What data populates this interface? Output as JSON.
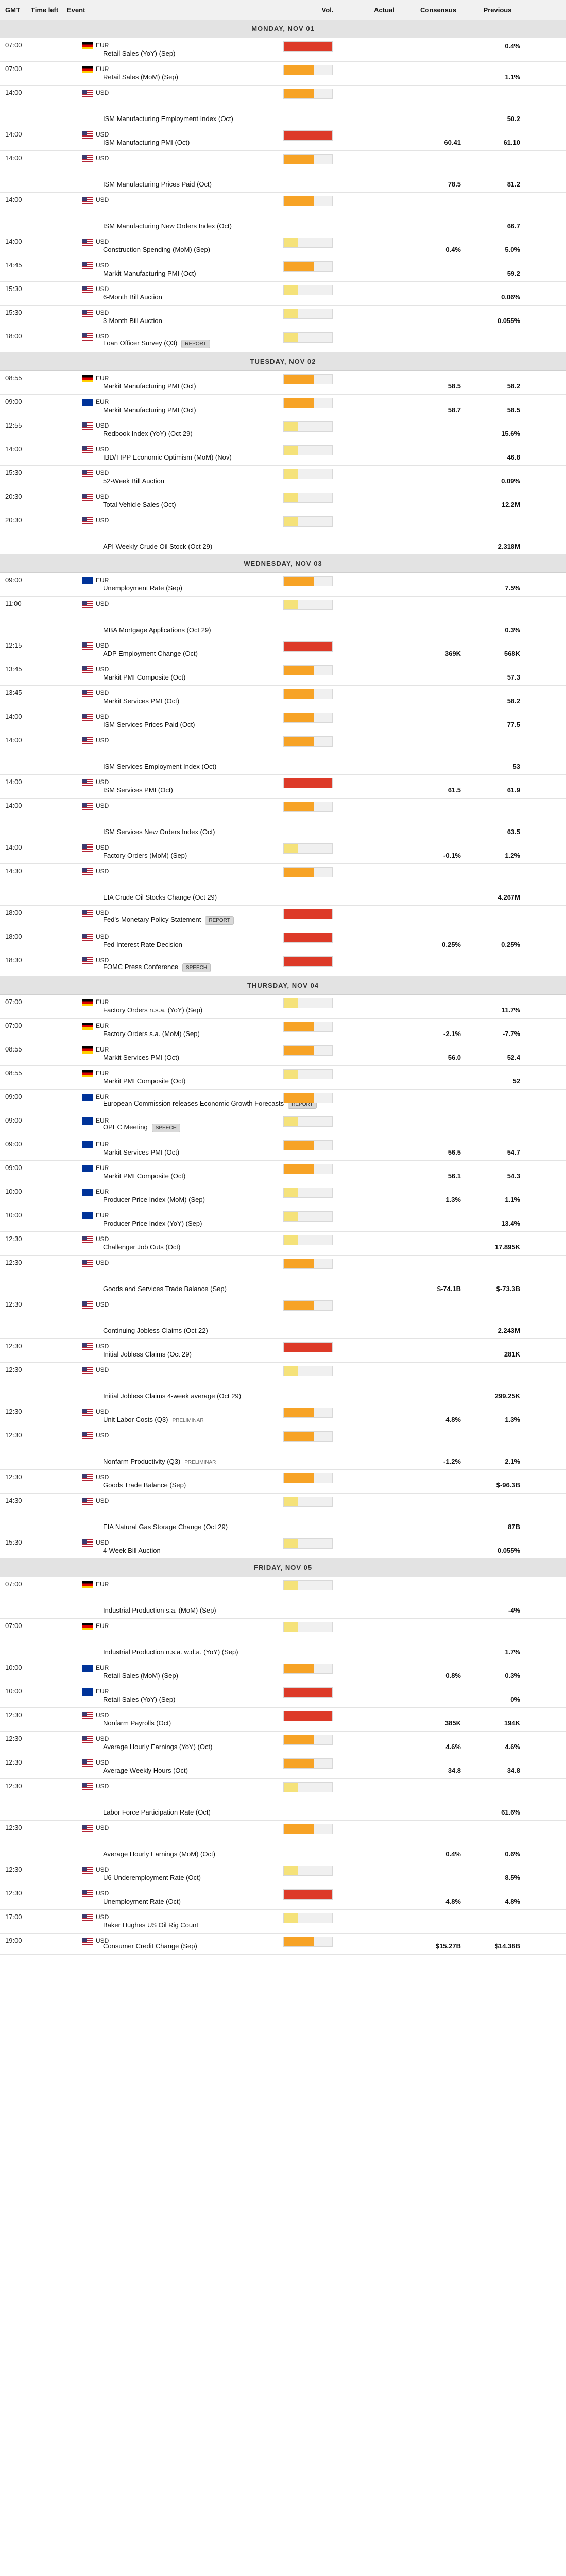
{
  "header": {
    "gmt": "GMT",
    "time_left": "Time left",
    "event": "Event",
    "vol": "Vol.",
    "actual": "Actual",
    "consensus": "Consensus",
    "previous": "Previous"
  },
  "colors": {
    "high": "#dd3a28",
    "medium": "#f7a326",
    "low": "#f5e27a"
  },
  "days": [
    {
      "label": "MONDAY, NOV 01",
      "rows": [
        {
          "t": "07:00",
          "cur": "EUR",
          "flag": "de",
          "ev": "Retail Sales (YoY) (Sep)",
          "vol": 3,
          "h": 45,
          "vtop": 8,
          "prev": "0.4%"
        },
        {
          "t": "07:00",
          "cur": "EUR",
          "flag": "de",
          "ev": "Retail Sales (MoM) (Sep)",
          "vol": 2,
          "h": 45,
          "prev": "1.1%"
        },
        {
          "t": "14:00",
          "cur": "USD",
          "flag": "us",
          "ev": "ISM Manufacturing Employment Index (Oct)",
          "vol": 2,
          "h": 80,
          "prev": "50.2"
        },
        {
          "t": "14:00",
          "cur": "USD",
          "flag": "us",
          "ev": "ISM Manufacturing PMI (Oct)",
          "vol": 3,
          "h": 45,
          "con": "60.41",
          "prev": "61.10"
        },
        {
          "t": "14:00",
          "cur": "USD",
          "flag": "us",
          "ev": "ISM Manufacturing Prices Paid (Oct)",
          "vol": 2,
          "h": 80,
          "con": "78.5",
          "prev": "81.2"
        },
        {
          "t": "14:00",
          "cur": "USD",
          "flag": "us",
          "ev": "ISM Manufacturing New Orders Index (Oct)",
          "vol": 2,
          "h": 80,
          "prev": "66.7"
        },
        {
          "t": "14:00",
          "cur": "USD",
          "flag": "us",
          "ev": "Construction Spending (MoM) (Sep)",
          "vol": 1,
          "h": 45,
          "con": "0.4%",
          "prev": "5.0%"
        },
        {
          "t": "14:45",
          "cur": "USD",
          "flag": "us",
          "ev": "Markit Manufacturing PMI (Oct)",
          "vol": 2,
          "h": 45,
          "prev": "59.2"
        },
        {
          "t": "15:30",
          "cur": "USD",
          "flag": "us",
          "ev": "6-Month Bill Auction",
          "vol": 1,
          "h": 45,
          "prev": "0.06%"
        },
        {
          "t": "15:30",
          "cur": "USD",
          "flag": "us",
          "ev": "3-Month Bill Auction",
          "vol": 1,
          "h": 45,
          "prev": "0.055%"
        },
        {
          "t": "18:00",
          "cur": "USD",
          "flag": "us",
          "ev": "Loan Officer Survey (Q3)",
          "badge": "REPORT",
          "vol": 1,
          "h": 45
        }
      ]
    },
    {
      "label": "TUESDAY, NOV 02",
      "rows": [
        {
          "t": "08:55",
          "cur": "EUR",
          "flag": "de",
          "ev": "Markit Manufacturing PMI (Oct)",
          "vol": 2,
          "h": 45,
          "con": "58.5",
          "prev": "58.2"
        },
        {
          "t": "09:00",
          "cur": "EUR",
          "flag": "eu",
          "ev": "Markit Manufacturing PMI (Oct)",
          "vol": 2,
          "h": 45,
          "con": "58.7",
          "prev": "58.5"
        },
        {
          "t": "12:55",
          "cur": "USD",
          "flag": "us",
          "ev": "Redbook Index (YoY) (Oct 29)",
          "vol": 1,
          "h": 45,
          "prev": "15.6%"
        },
        {
          "t": "14:00",
          "cur": "USD",
          "flag": "us",
          "ev": "IBD/TIPP Economic Optimism (MoM) (Nov)",
          "vol": 1,
          "h": 45,
          "prev": "46.8"
        },
        {
          "t": "15:30",
          "cur": "USD",
          "flag": "us",
          "ev": "52-Week Bill Auction",
          "vol": 1,
          "h": 45,
          "prev": "0.09%"
        },
        {
          "t": "20:30",
          "cur": "USD",
          "flag": "us",
          "ev": "Total Vehicle Sales (Oct)",
          "vol": 1,
          "h": 45,
          "prev": "12.2M"
        },
        {
          "t": "20:30",
          "cur": "USD",
          "flag": "us",
          "ev": "API Weekly Crude Oil Stock (Oct 29)",
          "vol": 1,
          "h": 80,
          "prev": "2.318M"
        }
      ]
    },
    {
      "label": "WEDNESDAY, NOV 03",
      "rows": [
        {
          "t": "09:00",
          "cur": "EUR",
          "flag": "eu",
          "ev": "Unemployment Rate (Sep)",
          "vol": 2,
          "h": 45,
          "prev": "7.5%"
        },
        {
          "t": "11:00",
          "cur": "USD",
          "flag": "us",
          "ev": "MBA Mortgage Applications (Oct 29)",
          "vol": 1,
          "h": 80,
          "prev": "0.3%"
        },
        {
          "t": "12:15",
          "cur": "USD",
          "flag": "us",
          "ev": "ADP Employment Change (Oct)",
          "vol": 3,
          "h": 45,
          "con": "369K",
          "prev": "568K"
        },
        {
          "t": "13:45",
          "cur": "USD",
          "flag": "us",
          "ev": "Markit PMI Composite (Oct)",
          "vol": 2,
          "h": 45,
          "prev": "57.3"
        },
        {
          "t": "13:45",
          "cur": "USD",
          "flag": "us",
          "ev": "Markit Services PMI (Oct)",
          "vol": 2,
          "h": 45,
          "prev": "58.2"
        },
        {
          "t": "14:00",
          "cur": "USD",
          "flag": "us",
          "ev": "ISM Services Prices Paid (Oct)",
          "vol": 2,
          "h": 45,
          "prev": "77.5"
        },
        {
          "t": "14:00",
          "cur": "USD",
          "flag": "us",
          "ev": "ISM Services Employment Index (Oct)",
          "vol": 2,
          "h": 80,
          "prev": "53"
        },
        {
          "t": "14:00",
          "cur": "USD",
          "flag": "us",
          "ev": "ISM Services PMI (Oct)",
          "vol": 3,
          "h": 45,
          "con": "61.5",
          "prev": "61.9"
        },
        {
          "t": "14:00",
          "cur": "USD",
          "flag": "us",
          "ev": "ISM Services New Orders Index (Oct)",
          "vol": 2,
          "h": 80,
          "prev": "63.5"
        },
        {
          "t": "14:00",
          "cur": "USD",
          "flag": "us",
          "ev": "Factory Orders (MoM) (Sep)",
          "vol": 1,
          "h": 45,
          "con": "-0.1%",
          "prev": "1.2%"
        },
        {
          "t": "14:30",
          "cur": "USD",
          "flag": "us",
          "ev": "EIA Crude Oil Stocks Change (Oct 29)",
          "vol": 2,
          "h": 80,
          "prev": "4.267M"
        },
        {
          "t": "18:00",
          "cur": "USD",
          "flag": "us",
          "ev": "Fed's Monetary Policy Statement",
          "badge": "REPORT",
          "vol": 3,
          "h": 45
        },
        {
          "t": "18:00",
          "cur": "USD",
          "flag": "us",
          "ev": "Fed Interest Rate Decision",
          "vol": 3,
          "h": 45,
          "con": "0.25%",
          "prev": "0.25%"
        },
        {
          "t": "18:30",
          "cur": "USD",
          "flag": "us",
          "ev": "FOMC Press Conference",
          "badge": "SPEECH",
          "vol": 3,
          "h": 45
        }
      ]
    },
    {
      "label": "THURSDAY, NOV 04",
      "rows": [
        {
          "t": "07:00",
          "cur": "EUR",
          "flag": "de",
          "ev": "Factory Orders n.s.a. (YoY) (Sep)",
          "vol": 1,
          "h": 45,
          "prev": "11.7%"
        },
        {
          "t": "07:00",
          "cur": "EUR",
          "flag": "de",
          "ev": "Factory Orders s.a. (MoM) (Sep)",
          "vol": 2,
          "h": 45,
          "con": "-2.1%",
          "prev": "-7.7%"
        },
        {
          "t": "08:55",
          "cur": "EUR",
          "flag": "de",
          "ev": "Markit Services PMI (Oct)",
          "vol": 2,
          "h": 45,
          "con": "56.0",
          "prev": "52.4"
        },
        {
          "t": "08:55",
          "cur": "EUR",
          "flag": "de",
          "ev": "Markit PMI Composite (Oct)",
          "vol": 1,
          "h": 45,
          "prev": "52"
        },
        {
          "t": "09:00",
          "cur": "EUR",
          "flag": "eu",
          "ev": "European Commission releases Economic Growth Forecasts",
          "badge": "REPORT",
          "vol": 2,
          "h": 45
        },
        {
          "t": "09:00",
          "cur": "EUR",
          "flag": "eu",
          "ev": "OPEC Meeting",
          "badge": "SPEECH",
          "vol": 1,
          "h": 45
        },
        {
          "t": "09:00",
          "cur": "EUR",
          "flag": "eu",
          "ev": "Markit Services PMI (Oct)",
          "vol": 2,
          "h": 45,
          "con": "56.5",
          "prev": "54.7"
        },
        {
          "t": "09:00",
          "cur": "EUR",
          "flag": "eu",
          "ev": "Markit PMI Composite (Oct)",
          "vol": 2,
          "h": 45,
          "con": "56.1",
          "prev": "54.3"
        },
        {
          "t": "10:00",
          "cur": "EUR",
          "flag": "eu",
          "ev": "Producer Price Index (MoM) (Sep)",
          "vol": 1,
          "h": 45,
          "con": "1.3%",
          "prev": "1.1%"
        },
        {
          "t": "10:00",
          "cur": "EUR",
          "flag": "eu",
          "ev": "Producer Price Index (YoY) (Sep)",
          "vol": 1,
          "h": 45,
          "prev": "13.4%"
        },
        {
          "t": "12:30",
          "cur": "USD",
          "flag": "us",
          "ev": "Challenger Job Cuts (Oct)",
          "vol": 1,
          "h": 45,
          "prev": "17.895K"
        },
        {
          "t": "12:30",
          "cur": "USD",
          "flag": "us",
          "ev": "Goods and Services Trade Balance (Sep)",
          "vol": 2,
          "h": 80,
          "con": "$-74.1B",
          "prev": "$-73.3B"
        },
        {
          "t": "12:30",
          "cur": "USD",
          "flag": "us",
          "ev": "Continuing Jobless Claims (Oct 22)",
          "vol": 2,
          "h": 80,
          "prev": "2.243M"
        },
        {
          "t": "12:30",
          "cur": "USD",
          "flag": "us",
          "ev": "Initial Jobless Claims (Oct 29)",
          "vol": 3,
          "h": 45,
          "prev": "281K"
        },
        {
          "t": "12:30",
          "cur": "USD",
          "flag": "us",
          "ev": "Initial Jobless Claims 4-week average (Oct 29)",
          "vol": 1,
          "h": 80,
          "prev": "299.25K"
        },
        {
          "t": "12:30",
          "cur": "USD",
          "flag": "us",
          "ev": "Unit Labor Costs (Q3)",
          "prelim": "PRELIMINAR",
          "vol": 2,
          "h": 45,
          "con": "4.8%",
          "prev": "1.3%"
        },
        {
          "t": "12:30",
          "cur": "USD",
          "flag": "us",
          "ev": "Nonfarm Productivity (Q3)",
          "prelim": "PRELIMINAR",
          "vol": 2,
          "h": 80,
          "con": "-1.2%",
          "prev": "2.1%"
        },
        {
          "t": "12:30",
          "cur": "USD",
          "flag": "us",
          "ev": "Goods Trade Balance (Sep)",
          "vol": 2,
          "h": 45,
          "prev": "$-96.3B"
        },
        {
          "t": "14:30",
          "cur": "USD",
          "flag": "us",
          "ev": "EIA Natural Gas Storage Change (Oct 29)",
          "vol": 1,
          "h": 80,
          "prev": "87B"
        },
        {
          "t": "15:30",
          "cur": "USD",
          "flag": "us",
          "ev": "4-Week Bill Auction",
          "vol": 1,
          "h": 45,
          "prev": "0.055%"
        }
      ]
    },
    {
      "label": "FRIDAY, NOV 05",
      "rows": [
        {
          "t": "07:00",
          "cur": "EUR",
          "flag": "de",
          "ev": "Industrial Production s.a. (MoM) (Sep)",
          "vol": 1,
          "h": 80,
          "prev": "-4%"
        },
        {
          "t": "07:00",
          "cur": "EUR",
          "flag": "de",
          "ev": "Industrial Production n.s.a. w.d.a. (YoY) (Sep)",
          "vol": 1,
          "h": 80,
          "prev": "1.7%"
        },
        {
          "t": "10:00",
          "cur": "EUR",
          "flag": "eu",
          "ev": "Retail Sales (MoM) (Sep)",
          "vol": 2,
          "h": 45,
          "con": "0.8%",
          "prev": "0.3%"
        },
        {
          "t": "10:00",
          "cur": "EUR",
          "flag": "eu",
          "ev": "Retail Sales (YoY) (Sep)",
          "vol": 3,
          "h": 45,
          "prev": "0%"
        },
        {
          "t": "12:30",
          "cur": "USD",
          "flag": "us",
          "ev": "Nonfarm Payrolls (Oct)",
          "vol": 3,
          "h": 45,
          "con": "385K",
          "prev": "194K"
        },
        {
          "t": "12:30",
          "cur": "USD",
          "flag": "us",
          "ev": "Average Hourly Earnings (YoY) (Oct)",
          "vol": 2,
          "h": 45,
          "con": "4.6%",
          "prev": "4.6%"
        },
        {
          "t": "12:30",
          "cur": "USD",
          "flag": "us",
          "ev": "Average Weekly Hours (Oct)",
          "vol": 2,
          "h": 45,
          "con": "34.8",
          "prev": "34.8"
        },
        {
          "t": "12:30",
          "cur": "USD",
          "flag": "us",
          "ev": "Labor Force Participation Rate (Oct)",
          "vol": 1,
          "h": 80,
          "prev": "61.6%"
        },
        {
          "t": "12:30",
          "cur": "USD",
          "flag": "us",
          "ev": "Average Hourly Earnings (MoM) (Oct)",
          "vol": 2,
          "h": 80,
          "con": "0.4%",
          "prev": "0.6%"
        },
        {
          "t": "12:30",
          "cur": "USD",
          "flag": "us",
          "ev": "U6 Underemployment Rate (Oct)",
          "vol": 1,
          "h": 45,
          "prev": "8.5%"
        },
        {
          "t": "12:30",
          "cur": "USD",
          "flag": "us",
          "ev": "Unemployment Rate (Oct)",
          "vol": 3,
          "h": 45,
          "con": "4.8%",
          "prev": "4.8%"
        },
        {
          "t": "17:00",
          "cur": "USD",
          "flag": "us",
          "ev": "Baker Hughes US Oil Rig Count",
          "vol": 1,
          "h": 45
        },
        {
          "t": "19:00",
          "cur": "USD",
          "flag": "us",
          "ev": "Consumer Credit Change (Sep)",
          "vol": 2,
          "h": 40,
          "con": "$15.27B",
          "prev": "$14.38B"
        }
      ]
    }
  ]
}
